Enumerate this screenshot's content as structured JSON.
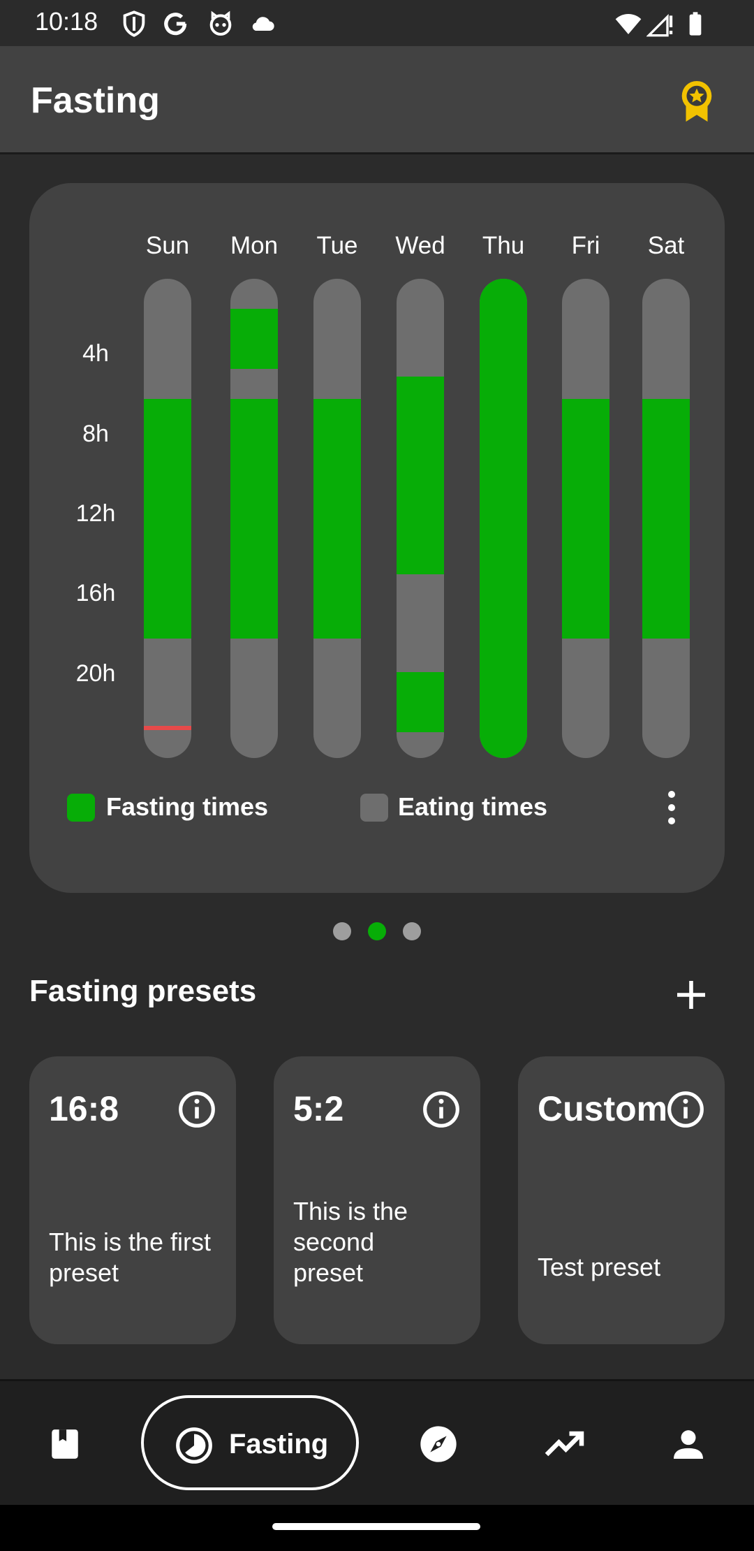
{
  "status_bar": {
    "time": "10:18",
    "left_icons": [
      "shield-icon",
      "google-icon",
      "cat-icon",
      "cloud-icon"
    ],
    "right_icons": [
      "wifi-icon",
      "signal-icon",
      "battery-icon"
    ]
  },
  "app_bar": {
    "title": "Fasting",
    "action_icon": "award-icon",
    "accent_color": "#f2c200"
  },
  "chart": {
    "days": [
      "Sun",
      "Mon",
      "Tue",
      "Wed",
      "Thu",
      "Fri",
      "Sat"
    ],
    "hour_labels": [
      "4h",
      "8h",
      "12h",
      "16h",
      "20h"
    ],
    "legend": {
      "fasting_label": "Fasting times",
      "eating_label": "Eating times",
      "fasting_color": "#07ad07",
      "eating_color": "#6e6e6e"
    },
    "marker_color": "#e64a4a"
  },
  "chart_data": {
    "type": "bar",
    "categories": [
      "Sun",
      "Mon",
      "Tue",
      "Wed",
      "Thu",
      "Fri",
      "Sat"
    ],
    "series": [
      {
        "name": "Fasting times",
        "ranges_hours": [
          [
            [
              6,
              18
            ]
          ],
          [
            [
              1.5,
              4.5
            ],
            [
              6,
              18
            ]
          ],
          [
            [
              6,
              18
            ]
          ],
          [
            [
              4.9,
              14.8
            ],
            [
              19.7,
              22.7
            ]
          ],
          [
            [
              0,
              24
            ]
          ],
          [
            [
              6,
              18
            ]
          ],
          [
            [
              6,
              18
            ]
          ]
        ]
      }
    ],
    "sun_marker_hour": 22.4,
    "ylabels": [
      "4h",
      "8h",
      "12h",
      "16h",
      "20h"
    ],
    "ylim": [
      0,
      24
    ],
    "legend": [
      "Fasting times",
      "Eating times"
    ]
  },
  "pager": {
    "count": 3,
    "active": 1,
    "active_color": "#07ad07",
    "inactive_color": "#9e9e9e"
  },
  "presets": {
    "title": "Fasting presets",
    "add_icon": "plus-icon",
    "items": [
      {
        "name": "16:8",
        "description": "This is the first preset"
      },
      {
        "name": "5:2",
        "description": "This is the second preset"
      },
      {
        "name": "Custom",
        "description": "Test preset"
      }
    ]
  },
  "bottom_nav": {
    "items": [
      {
        "icon": "book-icon",
        "label": ""
      },
      {
        "icon": "fasting-clock-icon",
        "label": "Fasting",
        "active": true
      },
      {
        "icon": "compass-icon",
        "label": ""
      },
      {
        "icon": "trending-up-icon",
        "label": ""
      },
      {
        "icon": "person-icon",
        "label": ""
      }
    ]
  }
}
